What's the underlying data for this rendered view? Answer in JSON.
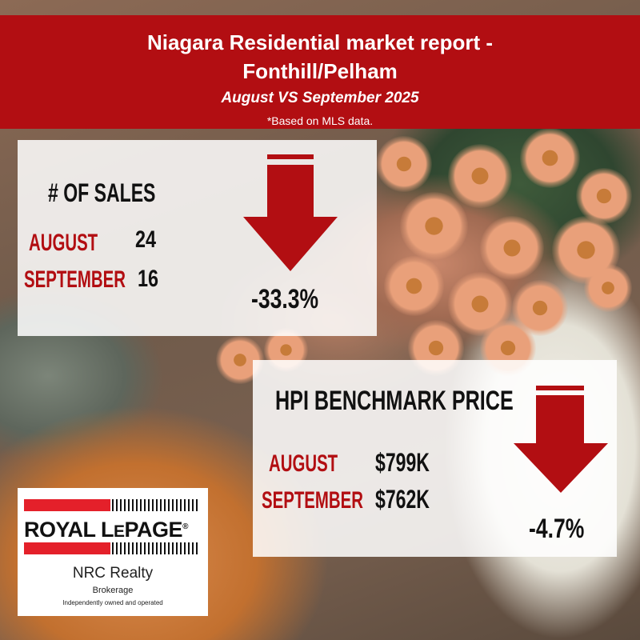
{
  "header": {
    "title_line1": "Niagara Residential market report -",
    "title_line2": "Fonthill/Pelham",
    "subtitle": "August VS September 2025",
    "note": "*Based on MLS data."
  },
  "sales": {
    "heading": "# OF SALES",
    "rows": [
      {
        "label": "AUGUST",
        "value": "24"
      },
      {
        "label": "SEPTEMBER",
        "value": "16"
      }
    ],
    "change": "-33.3%",
    "direction": "down-arrow-icon"
  },
  "hpi": {
    "heading": "HPI BENCHMARK PRICE",
    "rows": [
      {
        "label": "AUGUST",
        "value": "$799K"
      },
      {
        "label": "SEPTEMBER",
        "value": "$762K"
      }
    ],
    "change": "-4.7%",
    "direction": "down-arrow-icon"
  },
  "logo": {
    "brand_main": "ROYAL L",
    "brand_small": "E",
    "brand_end": "PAGE",
    "registered": "®",
    "office": "NRC Realty",
    "type": "Brokerage",
    "tagline": "Independently owned and operated"
  },
  "colors": {
    "brand_red": "#b20e12",
    "logo_red": "#e4202a",
    "panel_white": "rgba(255,255,255,0.86)"
  }
}
